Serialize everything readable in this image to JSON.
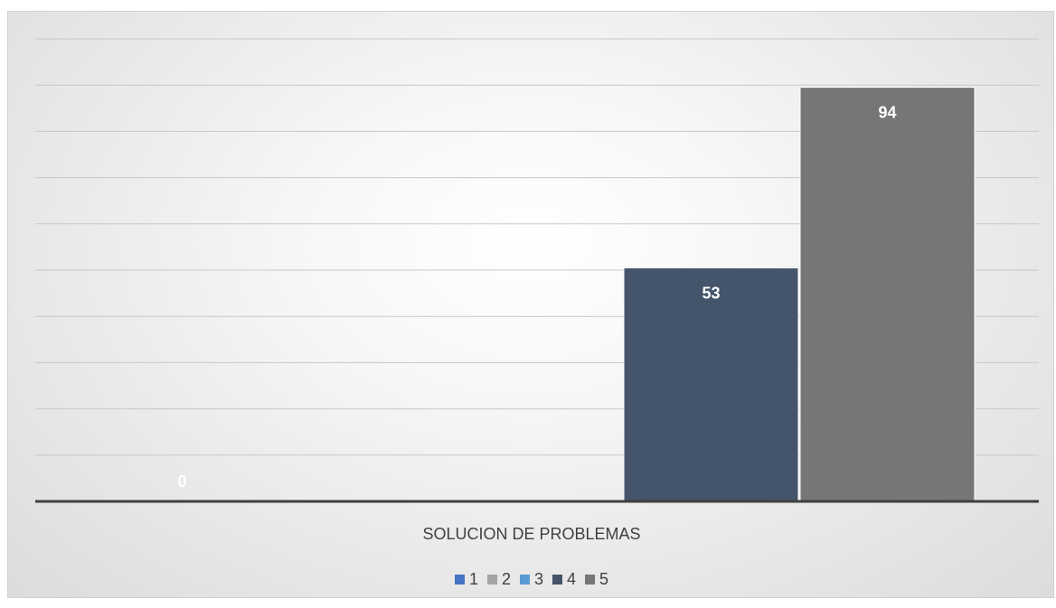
{
  "chart_data": {
    "type": "bar",
    "categories": [
      "SOLUCION DE PROBLEMAS"
    ],
    "series": [
      {
        "name": "1",
        "values": [
          0
        ],
        "color": "#4472c4"
      },
      {
        "name": "2",
        "values": [
          0
        ],
        "color": "#a5a5a5"
      },
      {
        "name": "3",
        "values": [
          0
        ],
        "color": "#5b9bd5"
      },
      {
        "name": "4",
        "values": [
          53
        ],
        "color": "#44546a"
      },
      {
        "name": "5",
        "values": [
          94
        ],
        "color": "#767676"
      }
    ],
    "data_labels": [
      "0",
      "",
      "",
      "53",
      "94"
    ],
    "ylim": [
      0,
      105
    ],
    "y_tick_step": 10.5,
    "grid": true,
    "legend_position": "bottom",
    "title": "",
    "xlabel": "",
    "ylabel": ""
  }
}
